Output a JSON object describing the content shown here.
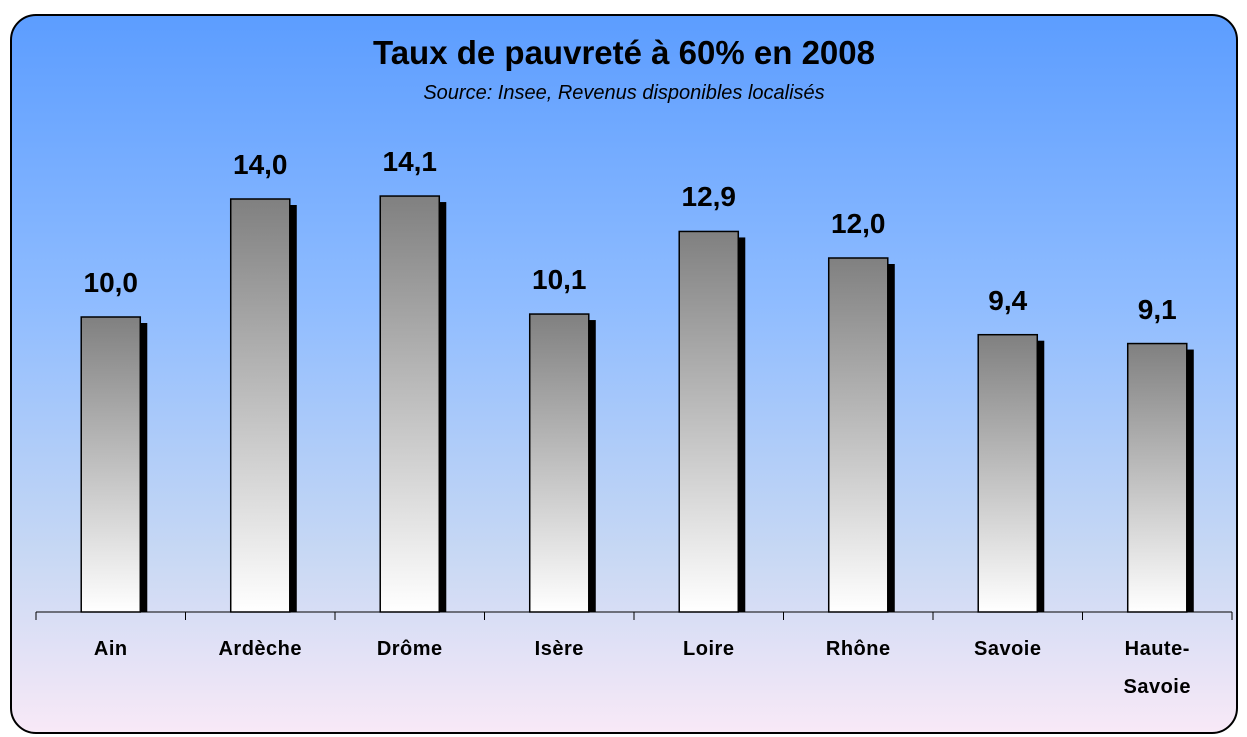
{
  "chart_data": {
    "type": "bar",
    "title": "Taux de pauvreté à 60% en 2008",
    "subtitle": "Source: Insee, Revenus disponibles localisés",
    "categories": [
      "Ain",
      "Ardèche",
      "Drôme",
      "Isère",
      "Loire",
      "Rhône",
      "Savoie",
      "Haute-Savoie"
    ],
    "values": [
      10.0,
      14.0,
      14.1,
      10.1,
      12.9,
      12.0,
      9.4,
      9.1
    ],
    "value_labels": [
      "10,0",
      "14,0",
      "14,1",
      "10,1",
      "12,9",
      "12,0",
      "9,4",
      "9,1"
    ],
    "color": "#808080",
    "ylim": [
      0,
      16
    ]
  }
}
